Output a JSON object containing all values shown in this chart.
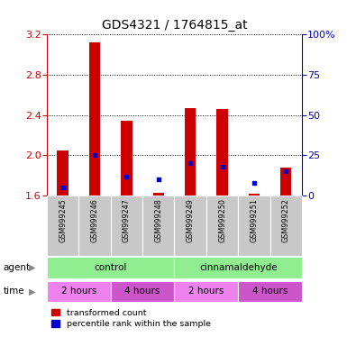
{
  "title": "GDS4321 / 1764815_at",
  "samples": [
    "GSM999245",
    "GSM999246",
    "GSM999247",
    "GSM999248",
    "GSM999249",
    "GSM999250",
    "GSM999251",
    "GSM999252"
  ],
  "red_values": [
    2.05,
    3.12,
    2.34,
    1.63,
    2.47,
    2.46,
    1.62,
    1.88
  ],
  "blue_values_pct": [
    5,
    25,
    12,
    10,
    20,
    18,
    8,
    15
  ],
  "ylim_left": [
    1.6,
    3.2
  ],
  "ylim_right": [
    0,
    100
  ],
  "yticks_left": [
    1.6,
    2.0,
    2.4,
    2.8,
    3.2
  ],
  "yticks_right": [
    0,
    25,
    50,
    75,
    100
  ],
  "ytick_labels_right": [
    "0",
    "25",
    "50",
    "75",
    "100%"
  ],
  "baseline": 1.6,
  "agent_groups": [
    {
      "label": "control",
      "start": 0,
      "end": 4
    },
    {
      "label": "cinnamaldehyde",
      "start": 4,
      "end": 8
    }
  ],
  "time_groups": [
    {
      "label": "2 hours",
      "start": 0,
      "end": 2,
      "color": "#ee82ee"
    },
    {
      "label": "4 hours",
      "start": 2,
      "end": 4,
      "color": "#cc55cc"
    },
    {
      "label": "2 hours",
      "start": 4,
      "end": 6,
      "color": "#ee82ee"
    },
    {
      "label": "4 hours",
      "start": 6,
      "end": 8,
      "color": "#cc55cc"
    }
  ],
  "bar_color_red": "#cc0000",
  "bar_color_blue": "#0000cc",
  "agent_color": "#90ee90",
  "label_row_bg": "#c8c8c8",
  "left_axis_color": "#cc0000",
  "right_axis_color": "#0000bb",
  "legend_red": "transformed count",
  "legend_blue": "percentile rank within the sample",
  "bar_width": 0.35
}
